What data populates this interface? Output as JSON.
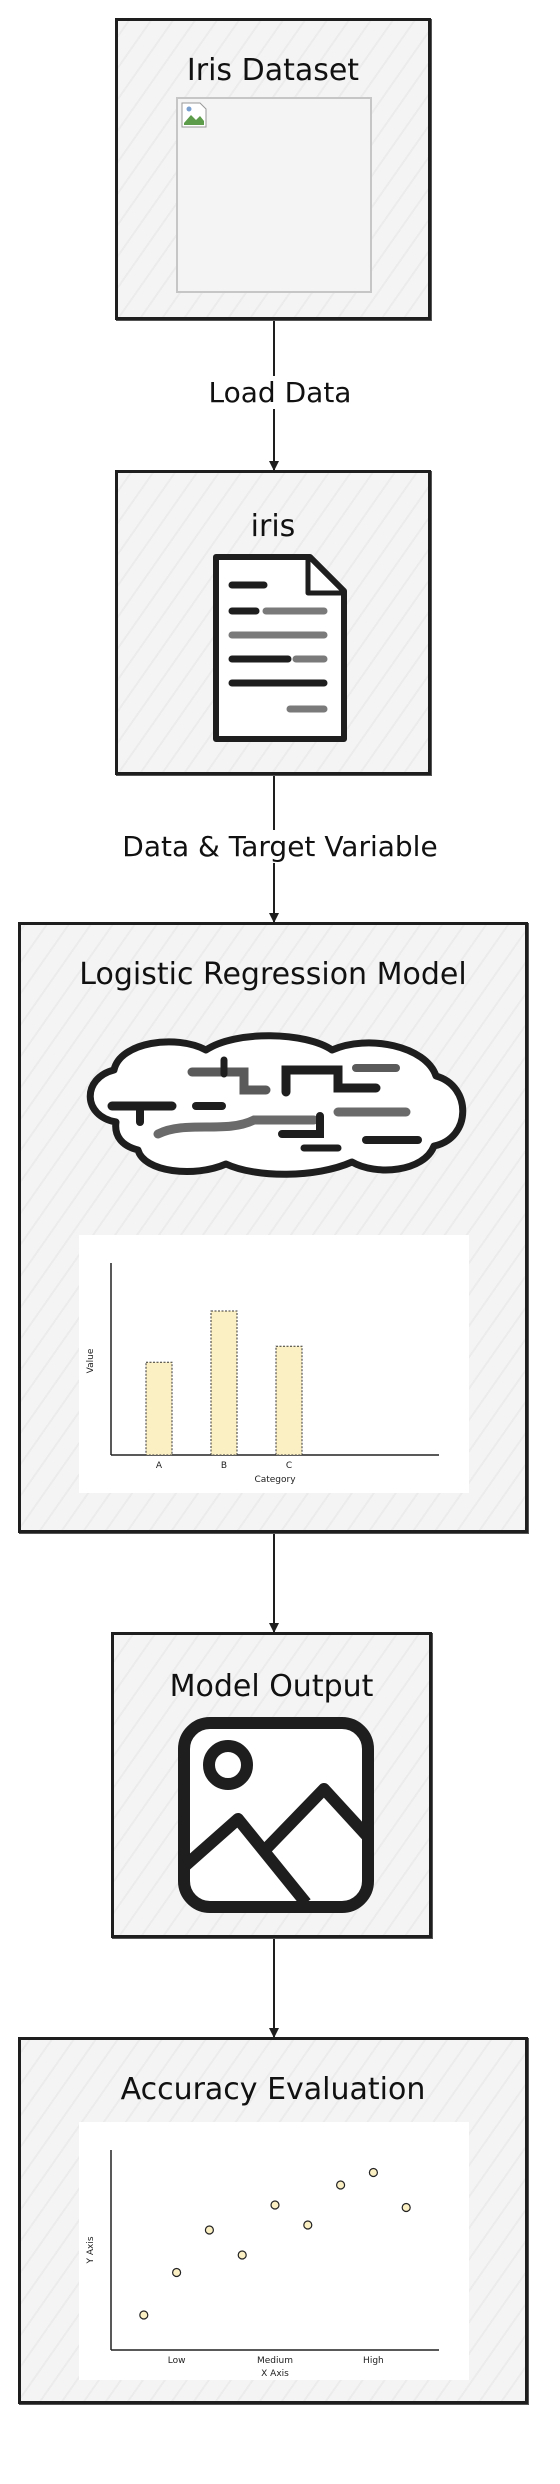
{
  "nodes": {
    "iris_dataset": {
      "title": "Iris Dataset",
      "image": "broken-image-icon"
    },
    "iris": {
      "title": "iris",
      "icon": "document-icon"
    },
    "model": {
      "title": "Logistic Regression Model",
      "icon": "brain-icon"
    },
    "output": {
      "title": "Model Output",
      "icon": "image-placeholder-icon"
    },
    "accuracy": {
      "title": "Accuracy Evaluation"
    }
  },
  "edges": [
    {
      "from": "iris_dataset",
      "to": "iris",
      "label": "Load Data"
    },
    {
      "from": "iris",
      "to": "model",
      "label": "Data & Target Variable"
    },
    {
      "from": "model",
      "to": "output",
      "label": ""
    },
    {
      "from": "output",
      "to": "accuracy",
      "label": ""
    }
  ],
  "chart_data": [
    {
      "type": "bar",
      "categories": [
        "A",
        "B",
        "C"
      ],
      "values": [
        58,
        90,
        68
      ],
      "xlabel": "Category",
      "ylabel": "Value",
      "ylim": [
        0,
        120
      ],
      "color": "#fbefc4",
      "grid": false
    },
    {
      "type": "scatter",
      "x_categories": [
        "Low",
        "Medium",
        "High"
      ],
      "points": [
        {
          "x": 0.5,
          "y": 14
        },
        {
          "x": 1.0,
          "y": 31
        },
        {
          "x": 1.5,
          "y": 48
        },
        {
          "x": 2.0,
          "y": 38
        },
        {
          "x": 2.5,
          "y": 58
        },
        {
          "x": 3.0,
          "y": 50
        },
        {
          "x": 3.5,
          "y": 66
        },
        {
          "x": 4.0,
          "y": 71
        },
        {
          "x": 4.5,
          "y": 57
        }
      ],
      "xlabel": "X Axis",
      "ylabel": "Y Axis",
      "xlim": [
        0,
        5
      ],
      "ylim": [
        0,
        80
      ],
      "color": "#fbefc4",
      "grid": false
    }
  ]
}
